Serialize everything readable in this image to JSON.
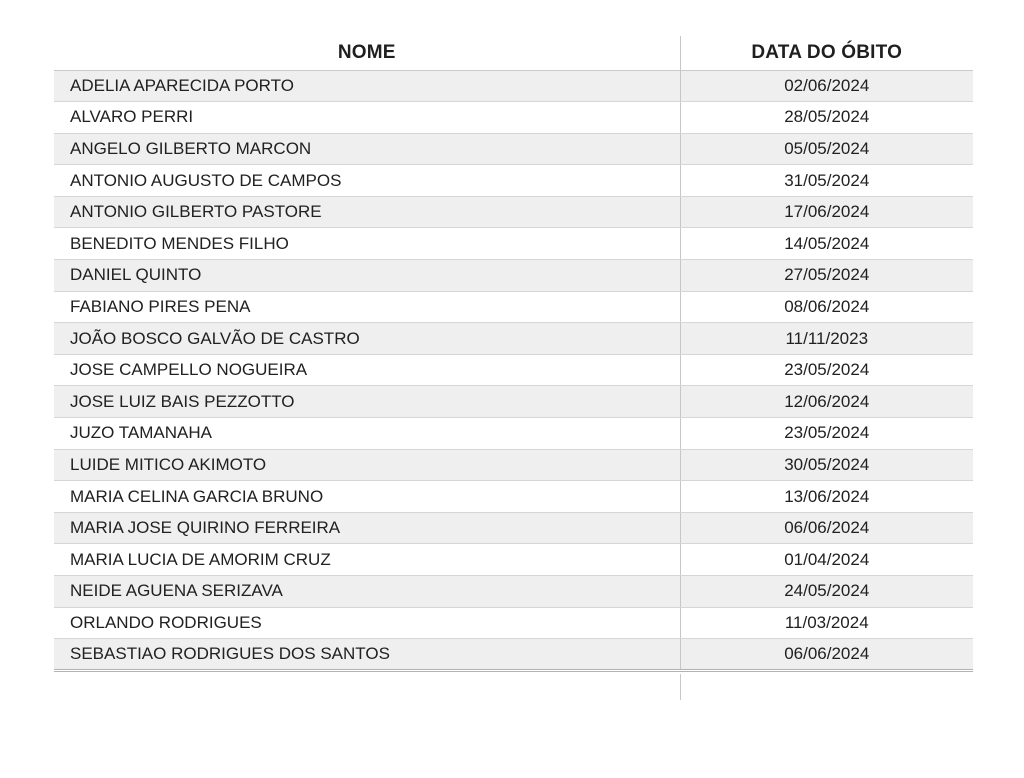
{
  "table": {
    "columns": [
      {
        "key": "name",
        "label": "NOME"
      },
      {
        "key": "date",
        "label": "DATA DO ÓBITO"
      }
    ],
    "rows": [
      {
        "name": "ADELIA APARECIDA PORTO",
        "date": "02/06/2024"
      },
      {
        "name": "ALVARO PERRI",
        "date": "28/05/2024"
      },
      {
        "name": "ANGELO GILBERTO MARCON",
        "date": "05/05/2024"
      },
      {
        "name": "ANTONIO AUGUSTO DE CAMPOS",
        "date": "31/05/2024"
      },
      {
        "name": "ANTONIO GILBERTO PASTORE",
        "date": "17/06/2024"
      },
      {
        "name": "BENEDITO MENDES FILHO",
        "date": "14/05/2024"
      },
      {
        "name": "DANIEL QUINTO",
        "date": "27/05/2024"
      },
      {
        "name": "FABIANO PIRES PENA",
        "date": "08/06/2024"
      },
      {
        "name": "JOÃO BOSCO GALVÃO DE CASTRO",
        "date": "11/11/2023"
      },
      {
        "name": "JOSE CAMPELLO NOGUEIRA",
        "date": "23/05/2024"
      },
      {
        "name": "JOSE LUIZ BAIS PEZZOTTO",
        "date": "12/06/2024"
      },
      {
        "name": "JUZO TAMANAHA",
        "date": "23/05/2024"
      },
      {
        "name": "LUIDE MITICO AKIMOTO",
        "date": "30/05/2024"
      },
      {
        "name": "MARIA CELINA GARCIA BRUNO",
        "date": "13/06/2024"
      },
      {
        "name": "MARIA JOSE QUIRINO FERREIRA",
        "date": "06/06/2024"
      },
      {
        "name": "MARIA LUCIA DE AMORIM CRUZ",
        "date": "01/04/2024"
      },
      {
        "name": "NEIDE AGUENA SERIZAVA",
        "date": "24/05/2024"
      },
      {
        "name": "ORLANDO RODRIGUES",
        "date": "11/03/2024"
      },
      {
        "name": "SEBASTIAO RODRIGUES DOS SANTOS",
        "date": "06/06/2024"
      }
    ],
    "colors": {
      "row_alt_background": "#efefef",
      "row_background": "#ffffff",
      "row_border": "#d6d6d6",
      "column_divider": "#c6c6c6",
      "bottom_double_border": "#b3b3b3",
      "text": "#212121",
      "header_text": "#1f1f1f"
    }
  }
}
